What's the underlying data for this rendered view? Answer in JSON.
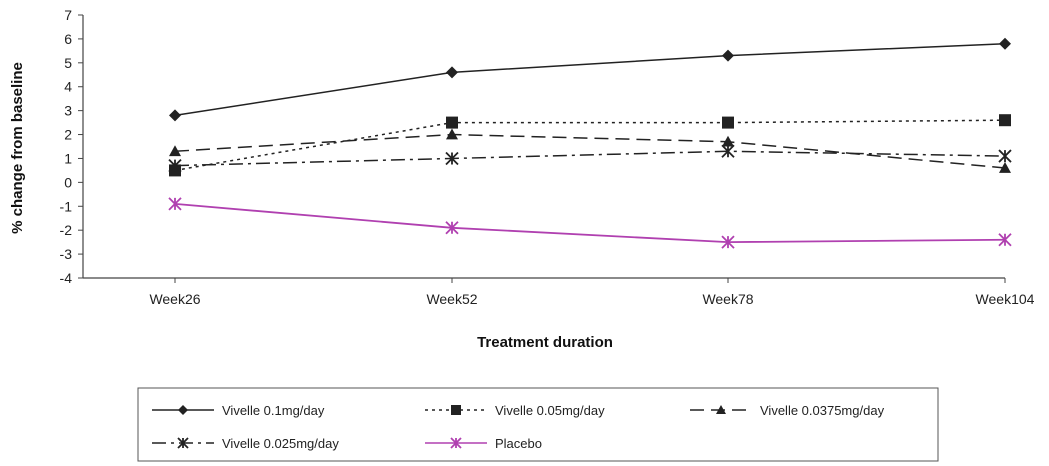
{
  "chart_data": {
    "type": "line",
    "title": "",
    "xlabel": "Treatment duration",
    "ylabel": "% change from baseline",
    "categories": [
      "Week26",
      "Week52",
      "Week78",
      "Week104"
    ],
    "ylim": [
      -4,
      7
    ],
    "yticks": [
      -4,
      -3,
      -2,
      -1,
      0,
      1,
      2,
      3,
      4,
      5,
      6,
      7
    ],
    "grid": false,
    "legend_position": "bottom",
    "series": [
      {
        "name": "Vivelle 0.1mg/day",
        "values": [
          2.8,
          4.6,
          5.3,
          5.8
        ],
        "color": "#222222",
        "dash": "solid",
        "marker": "diamond"
      },
      {
        "name": "Vivelle 0.05mg/day",
        "values": [
          0.5,
          2.5,
          2.5,
          2.6
        ],
        "color": "#222222",
        "dash": "dotted",
        "marker": "square"
      },
      {
        "name": "Vivelle 0.0375mg/day",
        "values": [
          1.3,
          2.0,
          1.7,
          0.6
        ],
        "color": "#222222",
        "dash": "dashed",
        "marker": "triangle"
      },
      {
        "name": "Vivelle 0.025mg/day",
        "values": [
          0.7,
          1.0,
          1.3,
          1.1
        ],
        "color": "#222222",
        "dash": "dashdot",
        "marker": "star"
      },
      {
        "name": "Placebo",
        "values": [
          -0.9,
          -1.9,
          -2.5,
          -2.4
        ],
        "color": "#b040b0",
        "dash": "solid",
        "marker": "star"
      }
    ]
  }
}
